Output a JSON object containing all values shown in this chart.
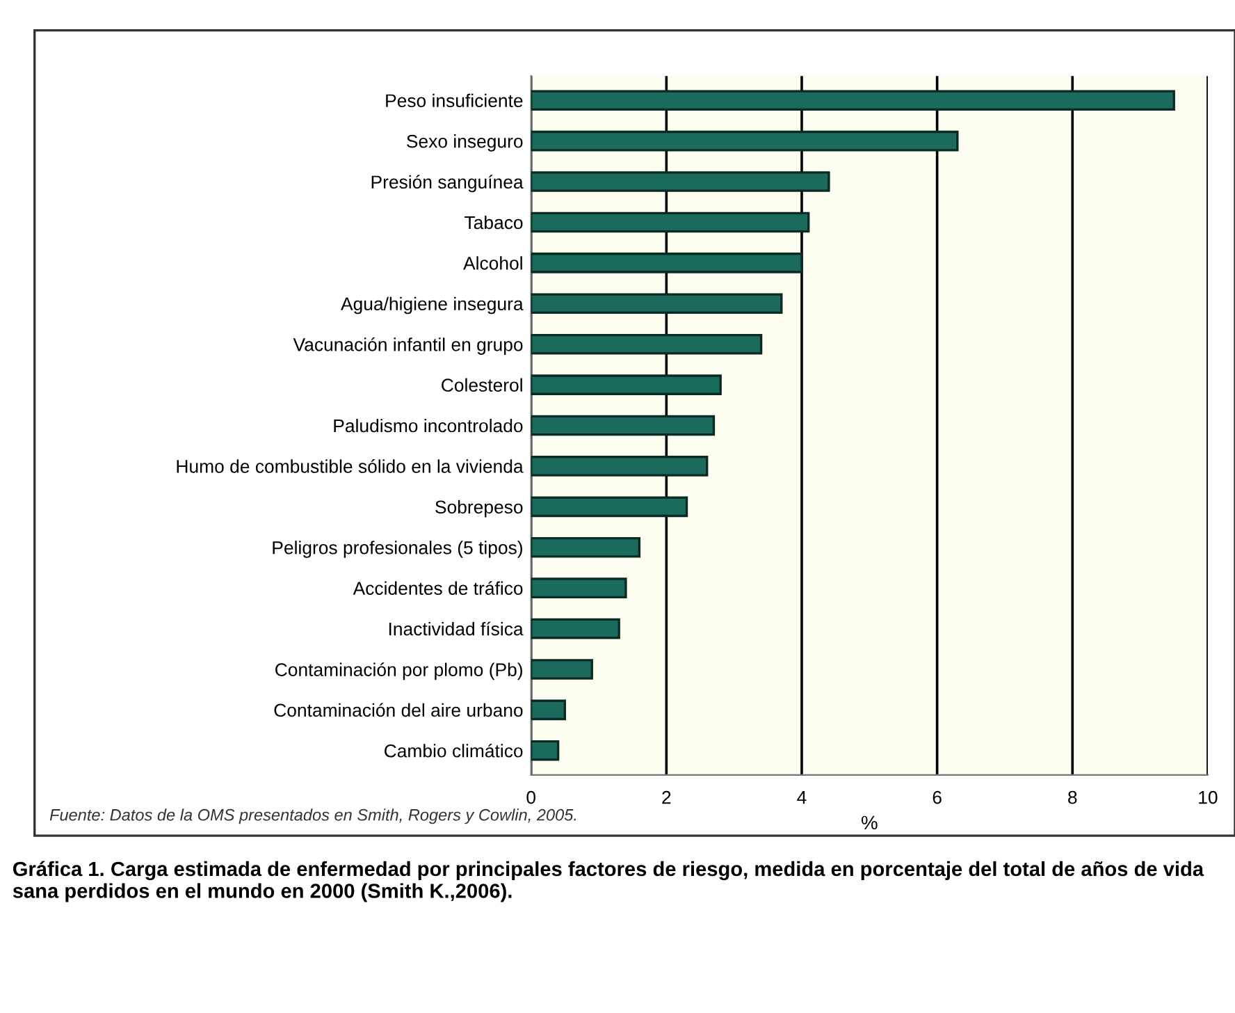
{
  "chart_data": {
    "type": "bar",
    "orientation": "horizontal",
    "xlabel": "%",
    "categories": [
      "Peso insuficiente",
      "Sexo inseguro",
      "Presión sanguínea",
      "Tabaco",
      "Alcohol",
      "Agua/higiene insegura",
      "Vacunación infantil en grupo",
      "Colesterol",
      "Paludismo incontrolado",
      "Humo de combustible sólido en la vivienda",
      "Sobrepeso",
      "Peligros profesionales (5 tipos)",
      "Accidentes de tráfico",
      "Inactividad física",
      "Contaminación por plomo (Pb)",
      "Contaminación del aire urbano",
      "Cambio climático"
    ],
    "values": [
      9.5,
      6.3,
      4.4,
      4.1,
      4.0,
      3.7,
      3.4,
      2.8,
      2.7,
      2.6,
      2.3,
      1.6,
      1.4,
      1.3,
      0.9,
      0.5,
      0.4
    ],
    "color": "#1b6b5c",
    "xlim": [
      0,
      10
    ],
    "xticks": [
      0,
      2,
      4,
      6,
      8,
      10
    ],
    "grid": "x",
    "legend": false,
    "annotations": [
      "Fuente: Datos de la OMS presentados en Smith, Rogers y Cowlin, 2005.",
      "Gráfica 1. Carga estimada de enfermedad por principales factores de riesgo, medida en porcentaje del total de años de vida sana perdidos en el mundo en 2000 (Smith K.,2006)."
    ]
  }
}
